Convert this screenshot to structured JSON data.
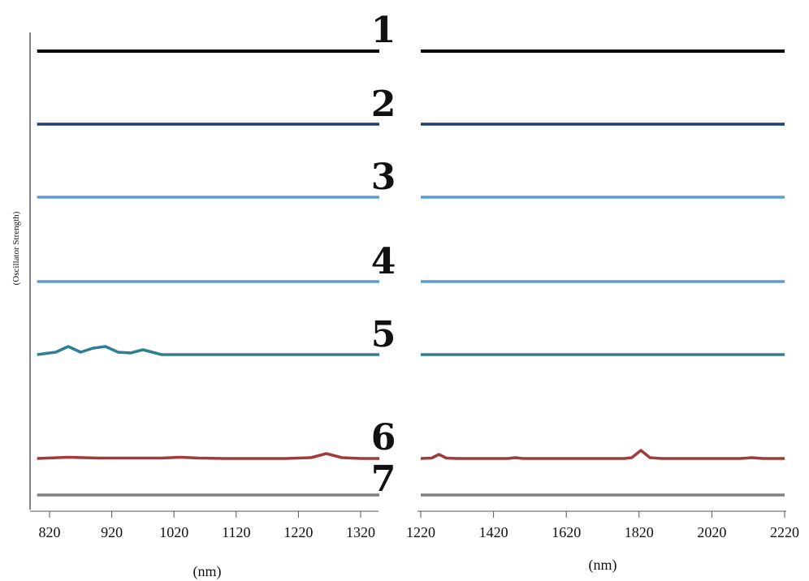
{
  "chart_data": [
    {
      "type": "line",
      "panel": "left",
      "xlabel": "(nm)",
      "ylabel": "(Oscillator Strength)",
      "xlim": [
        800,
        1350
      ],
      "xticks": [
        820,
        920,
        1020,
        1120,
        1220,
        1320
      ],
      "series": [
        {
          "name": "1",
          "color": "#000000",
          "x": [
            800,
            1350
          ],
          "y": [
            0,
            0
          ]
        },
        {
          "name": "2",
          "color": "#1f3d6e",
          "x": [
            800,
            1350
          ],
          "y": [
            0,
            0
          ]
        },
        {
          "name": "3",
          "color": "#5b9bd5",
          "x": [
            800,
            1350
          ],
          "y": [
            0,
            0
          ]
        },
        {
          "name": "4",
          "color": "#5b9bd5",
          "x": [
            800,
            1350
          ],
          "y": [
            0,
            0
          ]
        },
        {
          "name": "5",
          "color": "#2e7f92",
          "x": [
            800,
            830,
            850,
            870,
            890,
            910,
            930,
            950,
            970,
            1000,
            1350
          ],
          "y": [
            0,
            0.3,
            1.0,
            0.3,
            0.8,
            1.0,
            0.3,
            0.2,
            0.6,
            0,
            0
          ]
        },
        {
          "name": "6",
          "color": "#a33a3a",
          "x": [
            800,
            850,
            900,
            950,
            1000,
            1030,
            1060,
            1100,
            1200,
            1240,
            1265,
            1290,
            1320,
            1350
          ],
          "y": [
            0,
            0.15,
            0.05,
            0.05,
            0.05,
            0.15,
            0.05,
            0,
            0,
            0.1,
            0.6,
            0.1,
            0,
            0
          ]
        },
        {
          "name": "7",
          "color": "#808080",
          "x": [
            800,
            1350
          ],
          "y": [
            0,
            0
          ]
        }
      ]
    },
    {
      "type": "line",
      "panel": "right",
      "xlabel": "(nm)",
      "xlim": [
        1220,
        2220
      ],
      "xticks": [
        1220,
        1420,
        1620,
        1820,
        2020,
        2220
      ],
      "series": [
        {
          "name": "1",
          "color": "#000000",
          "x": [
            1220,
            2220
          ],
          "y": [
            0,
            0
          ]
        },
        {
          "name": "2",
          "color": "#1f3d6e",
          "x": [
            1220,
            2220
          ],
          "y": [
            0,
            0
          ]
        },
        {
          "name": "3",
          "color": "#5b9bd5",
          "x": [
            1220,
            2220
          ],
          "y": [
            0,
            0
          ]
        },
        {
          "name": "4",
          "color": "#5b9bd5",
          "x": [
            1220,
            2220
          ],
          "y": [
            0,
            0
          ]
        },
        {
          "name": "5",
          "color": "#2e7f92",
          "x": [
            1220,
            2220
          ],
          "y": [
            0,
            0
          ]
        },
        {
          "name": "6",
          "color": "#a33a3a",
          "x": [
            1220,
            1250,
            1270,
            1290,
            1320,
            1460,
            1480,
            1500,
            1780,
            1800,
            1825,
            1850,
            1880,
            2100,
            2130,
            2160,
            2220
          ],
          "y": [
            0,
            0.05,
            0.5,
            0.05,
            0,
            0,
            0.1,
            0,
            0,
            0.1,
            1.0,
            0.1,
            0,
            0,
            0.1,
            0,
            0
          ]
        },
        {
          "name": "7",
          "color": "#808080",
          "x": [
            1220,
            2220
          ],
          "y": [
            0,
            0
          ]
        }
      ]
    }
  ]
}
